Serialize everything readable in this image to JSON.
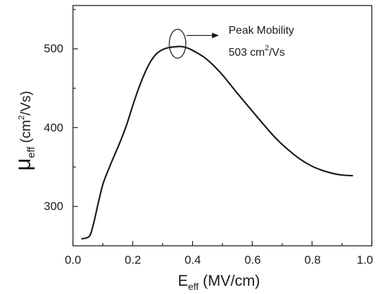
{
  "chart_data": {
    "type": "line",
    "xlabel": {
      "main": "E",
      "sub": "eff",
      "rest": " (MV/cm)"
    },
    "ylabel": {
      "main": "μ",
      "sub": "eff",
      "rest_open": " (cm",
      "sup": "2",
      "rest_close": "/Vs)"
    },
    "xlim": [
      0.0,
      1.0
    ],
    "ylim": [
      250,
      555
    ],
    "xticks": [
      0.0,
      0.2,
      0.4,
      0.6,
      0.8,
      1.0
    ],
    "xtick_labels": [
      "0.0",
      "0.2",
      "0.4",
      "0.6",
      "0.8",
      "1.0"
    ],
    "yticks": [
      300,
      400,
      500
    ],
    "ytick_labels": [
      "300",
      "400",
      "500"
    ],
    "grid": false,
    "series": [
      {
        "x": [
          0.03,
          0.045,
          0.058,
          0.07,
          0.085,
          0.1,
          0.12,
          0.14,
          0.16,
          0.18,
          0.2,
          0.22,
          0.24,
          0.26,
          0.28,
          0.3,
          0.32,
          0.34,
          0.355,
          0.37,
          0.39,
          0.41,
          0.44,
          0.47,
          0.5,
          0.53,
          0.56,
          0.6,
          0.64,
          0.68,
          0.72,
          0.76,
          0.8,
          0.84,
          0.88,
          0.91,
          0.935
        ],
        "y": [
          259,
          260,
          264,
          280,
          305,
          328,
          348,
          366,
          384,
          404,
          428,
          450,
          469,
          484,
          494,
          499,
          501.5,
          502.5,
          503,
          502.5,
          500,
          496,
          489,
          479,
          467,
          453,
          439,
          421,
          403,
          386,
          372,
          360,
          351,
          345,
          341,
          339.5,
          339
        ]
      }
    ],
    "annotation": {
      "title": "Peak Mobility",
      "value": "503 cm",
      "value_sup": "2",
      "value_unit": "/Vs",
      "marker_x": 0.35,
      "marker_y": 503
    }
  }
}
